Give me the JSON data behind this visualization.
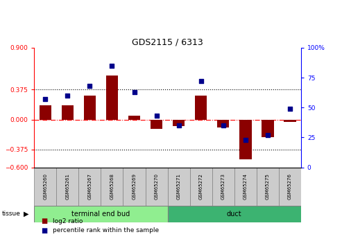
{
  "title": "GDS2115 / 6313",
  "samples": [
    "GSM65260",
    "GSM65261",
    "GSM65267",
    "GSM65268",
    "GSM65269",
    "GSM65270",
    "GSM65271",
    "GSM65272",
    "GSM65273",
    "GSM65274",
    "GSM65275",
    "GSM65276"
  ],
  "log2_ratio": [
    0.18,
    0.18,
    0.3,
    0.55,
    0.05,
    -0.12,
    -0.08,
    0.3,
    -0.1,
    -0.5,
    -0.22,
    -0.03
  ],
  "percentile_rank": [
    57,
    60,
    68,
    85,
    63,
    43,
    35,
    72,
    35,
    23,
    27,
    49
  ],
  "groups": [
    {
      "label": "terminal end bud",
      "start": 0,
      "end": 6,
      "color": "#90EE90"
    },
    {
      "label": "duct",
      "start": 6,
      "end": 12,
      "color": "#3CB371"
    }
  ],
  "bar_color": "#8B0000",
  "dot_color": "#00008B",
  "ylim_left": [
    -0.6,
    0.9
  ],
  "ylim_right": [
    0,
    100
  ],
  "yticks_left": [
    -0.6,
    -0.375,
    0,
    0.375,
    0.9
  ],
  "yticks_right": [
    0,
    25,
    50,
    75,
    100
  ],
  "hline_y": [
    0.375,
    -0.375
  ],
  "zero_line_y": 0,
  "bg_color": "#ffffff",
  "n_samples": 12
}
